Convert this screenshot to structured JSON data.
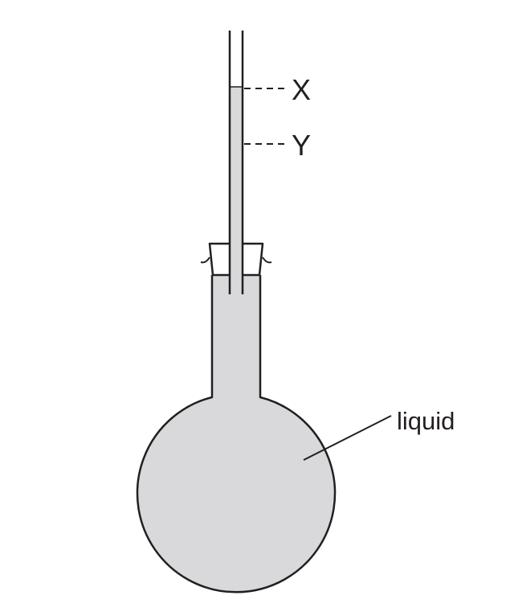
{
  "diagram": {
    "labels": {
      "mark_x": "X",
      "mark_y": "Y",
      "liquid": "liquid"
    },
    "colors": {
      "liquid_fill": "#d9d9db",
      "outline": "#231f20",
      "background": "#ffffff"
    }
  }
}
